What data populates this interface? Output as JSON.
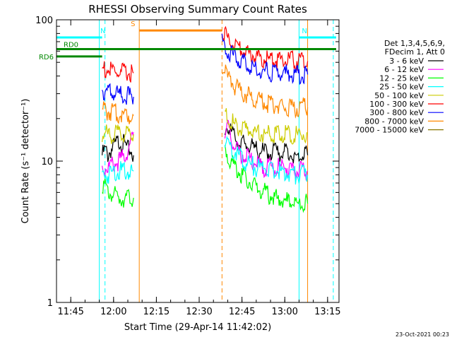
{
  "chart_data": {
    "type": "line",
    "title": "RHESSI Observing Summary Count Rates",
    "xlabel": "Start Time (29-Apr-14 11:42:02)",
    "ylabel": "Count Rate (s⁻¹ detector⁻¹)",
    "y_scale": "log",
    "ylim": [
      1,
      100
    ],
    "xlim": [
      "11:40",
      "13:19"
    ],
    "x_ticks": [
      "11:45",
      "12:00",
      "12:15",
      "12:30",
      "12:45",
      "13:00",
      "13:15"
    ],
    "y_ticks": [
      "1",
      "10",
      "100"
    ],
    "grid": false,
    "legend_position": "right",
    "legend_header": [
      "Det 1,3,4,5,6,9,",
      "FDecim 1, Att 0"
    ],
    "footer": "23-Oct-2021 00:23",
    "series": [
      {
        "name": "3 - 6 keV",
        "color": "#000000",
        "segments": [
          {
            "x": [
              "11:56",
              "11:57",
              "11:58",
              "11:59",
              "12:00",
              "12:02",
              "12:04",
              "12:05",
              "12:06",
              "12:07"
            ],
            "y": [
              11.0,
              12.0,
              11.0,
              12.0,
              12.5,
              14.0,
              13.0,
              12.0,
              12.0,
              11.0
            ]
          },
          {
            "x": [
              "12:39",
              "12:40",
              "12:42",
              "12:44",
              "12:46",
              "12:48",
              "12:50",
              "12:53",
              "12:56",
              "13:00",
              "13:04",
              "13:08"
            ],
            "y": [
              16.0,
              18.0,
              15.0,
              13.5,
              13.0,
              12.5,
              12.0,
              11.5,
              11.5,
              11.5,
              11.0,
              11.0
            ]
          }
        ]
      },
      {
        "name": "6 - 12 keV",
        "color": "#ff00ff",
        "segments": [
          {
            "x": [
              "11:56",
              "11:58",
              "12:00",
              "12:02",
              "12:04",
              "12:06",
              "12:07"
            ],
            "y": [
              9.0,
              9.0,
              9.5,
              10.0,
              11.0,
              13.0,
              16.0
            ]
          },
          {
            "x": [
              "12:39",
              "12:40",
              "12:42",
              "12:44",
              "12:46",
              "12:48",
              "12:50",
              "12:53",
              "12:56",
              "13:00",
              "13:04",
              "13:08"
            ],
            "y": [
              15.0,
              17.0,
              13.0,
              11.5,
              11.0,
              10.0,
              9.5,
              9.0,
              9.0,
              9.0,
              8.5,
              8.5
            ]
          }
        ]
      },
      {
        "name": "12 - 25 keV",
        "color": "#00ff00",
        "segments": [
          {
            "x": [
              "11:56",
              "11:57",
              "11:58",
              "12:00",
              "12:02",
              "12:04",
              "12:06",
              "12:07"
            ],
            "y": [
              7.0,
              6.5,
              6.0,
              5.8,
              5.5,
              5.5,
              5.5,
              5.5
            ]
          },
          {
            "x": [
              "12:39",
              "12:40",
              "12:42",
              "12:44",
              "12:46",
              "12:48",
              "12:50",
              "12:53",
              "12:56",
              "13:00",
              "13:04",
              "13:08"
            ],
            "y": [
              12.0,
              11.0,
              9.5,
              8.5,
              7.5,
              7.0,
              6.5,
              6.0,
              5.5,
              5.2,
              5.0,
              5.0
            ]
          }
        ]
      },
      {
        "name": "25 - 50 keV",
        "color": "#00ffff",
        "segments": [
          {
            "x": [
              "11:56",
              "11:58",
              "12:00",
              "12:02",
              "12:04",
              "12:06",
              "12:07"
            ],
            "y": [
              8.0,
              8.0,
              8.5,
              8.5,
              8.5,
              8.5,
              8.5
            ]
          },
          {
            "x": [
              "12:39",
              "12:40",
              "12:42",
              "12:44",
              "12:46",
              "12:48",
              "12:50",
              "12:53",
              "12:56",
              "13:00",
              "13:04",
              "13:08"
            ],
            "y": [
              14.0,
              13.5,
              12.0,
              11.0,
              10.0,
              9.5,
              9.0,
              9.0,
              8.5,
              8.5,
              8.0,
              8.0
            ]
          }
        ]
      },
      {
        "name": "50 - 100 keV",
        "color": "#cccc00",
        "segments": [
          {
            "x": [
              "11:56",
              "11:58",
              "12:00",
              "12:02",
              "12:04",
              "12:06",
              "12:07"
            ],
            "y": [
              15.5,
              15.5,
              15.5,
              15.5,
              15.5,
              15.5,
              15.5
            ]
          },
          {
            "x": [
              "12:39",
              "12:40",
              "12:42",
              "12:44",
              "12:46",
              "12:48",
              "12:50",
              "12:53",
              "12:56",
              "13:00",
              "13:04",
              "13:08"
            ],
            "y": [
              21.0,
              20.0,
              18.5,
              17.5,
              17.0,
              16.5,
              16.0,
              15.5,
              15.5,
              15.5,
              15.5,
              15.5
            ]
          }
        ]
      },
      {
        "name": "100 - 300 keV",
        "color": "#ff0000",
        "segments": [
          {
            "x": [
              "11:56",
              "11:58",
              "12:00",
              "12:02",
              "12:04",
              "12:06",
              "12:07"
            ],
            "y": [
              45.0,
              44.0,
              43.0,
              42.0,
              42.0,
              42.0,
              42.0
            ]
          },
          {
            "x": [
              "12:38",
              "12:39",
              "12:40",
              "12:41",
              "12:42",
              "12:44",
              "12:46",
              "12:48",
              "12:50",
              "12:53",
              "12:56",
              "13:00",
              "13:04",
              "13:08"
            ],
            "y": [
              85.0,
              80.0,
              75.0,
              70.0,
              66.0,
              62.0,
              60.0,
              57.0,
              55.0,
              53.0,
              52.0,
              51.0,
              51.0,
              51.0
            ]
          }
        ]
      },
      {
        "name": "300 - 800 keV",
        "color": "#0000ff",
        "segments": [
          {
            "x": [
              "11:56",
              "11:58",
              "12:00",
              "12:02",
              "12:04",
              "12:06",
              "12:07"
            ],
            "y": [
              32.0,
              31.0,
              30.0,
              29.5,
              29.0,
              28.5,
              28.5
            ]
          },
          {
            "x": [
              "12:38",
              "12:39",
              "12:40",
              "12:42",
              "12:44",
              "12:46",
              "12:48",
              "12:50",
              "12:53",
              "12:56",
              "13:00",
              "13:04",
              "13:08"
            ],
            "y": [
              68.0,
              63.0,
              59.0,
              55.0,
              52.0,
              49.0,
              47.0,
              45.0,
              43.0,
              42.0,
              41.5,
              41.0,
              41.0
            ]
          }
        ]
      },
      {
        "name": "800 - 7000 keV",
        "color": "#ff8800",
        "segments": [
          {
            "x": [
              "11:56",
              "11:58",
              "12:00",
              "12:02",
              "12:04",
              "12:06",
              "12:07"
            ],
            "y": [
              23.0,
              22.5,
              22.0,
              21.5,
              21.5,
              21.0,
              21.0
            ]
          },
          {
            "x": [
              "12:38",
              "12:39",
              "12:40",
              "12:42",
              "12:44",
              "12:46",
              "12:48",
              "12:50",
              "12:53",
              "12:56",
              "13:00",
              "13:04",
              "13:08"
            ],
            "y": [
              45.0,
              42.0,
              38.0,
              35.0,
              32.0,
              30.0,
              28.0,
              27.0,
              26.0,
              25.0,
              24.5,
              24.0,
              24.0
            ]
          }
        ]
      },
      {
        "name": "7000 - 15000 keV",
        "color": "#887700",
        "segments": []
      }
    ],
    "annotations": [
      {
        "label": "N",
        "color": "#00ffff",
        "x_start": "11:40",
        "x_end": "11:56",
        "y": 75
      },
      {
        "label": "N",
        "color": "#00ffff",
        "x_start": "13:05",
        "x_end": "13:18",
        "y": 75
      },
      {
        "label": "S",
        "color": "#ff8800",
        "x_start": "12:09",
        "x_end": "12:38",
        "y": 84
      },
      {
        "label": "RD0",
        "color": "#008800",
        "x_start": "11:40",
        "x_end": "13:18",
        "y": 62
      },
      {
        "label": "RD6",
        "color": "#008800",
        "x_start": "11:40",
        "x_end": "11:56",
        "y": 55
      }
    ],
    "vertical_lines": [
      {
        "x": "11:40",
        "color": "#00ffff",
        "style": "solid"
      },
      {
        "x": "11:55",
        "color": "#00ffff",
        "style": "solid"
      },
      {
        "x": "11:57",
        "color": "#00ffff",
        "style": "dashed"
      },
      {
        "x": "12:09",
        "color": "#ff8800",
        "style": "solid"
      },
      {
        "x": "12:38",
        "color": "#ff8800",
        "style": "dashed"
      },
      {
        "x": "13:05",
        "color": "#00ffff",
        "style": "solid"
      },
      {
        "x": "13:08",
        "color": "#ff8800",
        "style": "solid"
      },
      {
        "x": "13:17",
        "color": "#00ffff",
        "style": "dashed"
      }
    ]
  }
}
